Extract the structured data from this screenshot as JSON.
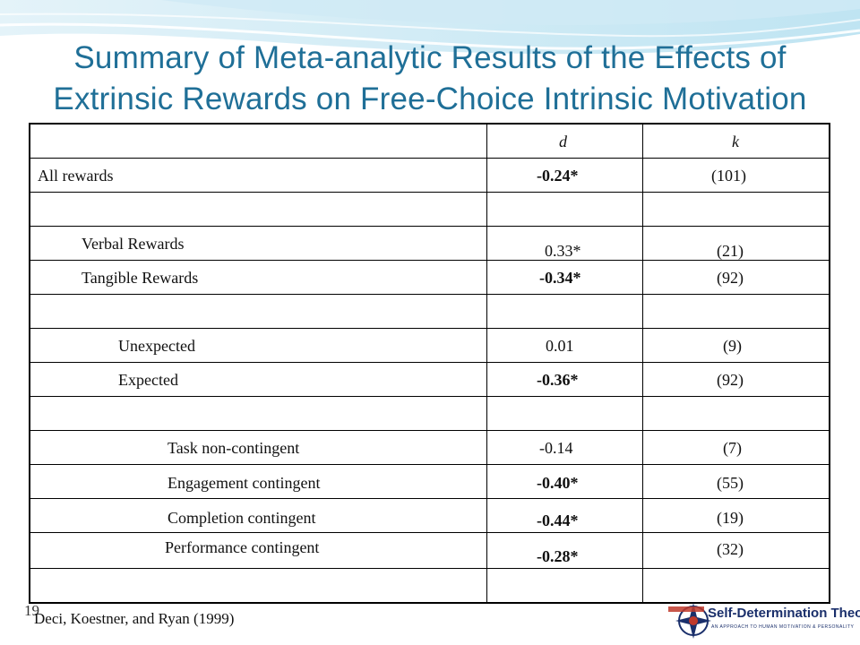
{
  "slide": {
    "title_line1": "Summary of Meta-analytic Results of the Effects of",
    "title_line2": "Extrinsic Rewards on Free-Choice Intrinsic Motivation",
    "slide_number": "19",
    "citation": "Deci, Koestner, and Ryan (1999)"
  },
  "table": {
    "headers": {
      "label": "",
      "d": "d",
      "k": "k"
    },
    "rows": [
      {
        "label": "All rewards",
        "d": "-0.24*",
        "k": "(101)"
      },
      {
        "label": "",
        "d": "",
        "k": ""
      },
      {
        "label": "Verbal Rewards",
        "d": "0.33*",
        "k": "(21)"
      },
      {
        "label": "Tangible Rewards",
        "d": "-0.34*",
        "k": "(92)"
      },
      {
        "label": "",
        "d": "",
        "k": ""
      },
      {
        "label": "Unexpected",
        "d": "0.01",
        "k": "(9)"
      },
      {
        "label": "Expected",
        "d": "-0.36*",
        "k": "(92)"
      },
      {
        "label": "",
        "d": "",
        "k": ""
      },
      {
        "label": "Task non-contingent",
        "d": "-0.14",
        "k": "(7)"
      },
      {
        "label": "Engagement contingent",
        "d": "-0.40*",
        "k": "(55)"
      },
      {
        "label": "Completion contingent",
        "d": "-0.44*",
        "k": "(19)"
      },
      {
        "label": "Performance contingent",
        "d": "-0.28*",
        "k": "(32)"
      },
      {
        "label": "",
        "d": "",
        "k": ""
      }
    ]
  },
  "logo": {
    "text": "Self-Determination Theory",
    "subtitle": "AN APPROACH TO HUMAN MOTIVATION & PERSONALITY"
  },
  "colors": {
    "title": "#1f6f97",
    "wave_light": "#d6eef7",
    "wave_mid": "#a8d9ec",
    "logo_navy": "#1a2f6b",
    "logo_red": "#c0392b"
  }
}
